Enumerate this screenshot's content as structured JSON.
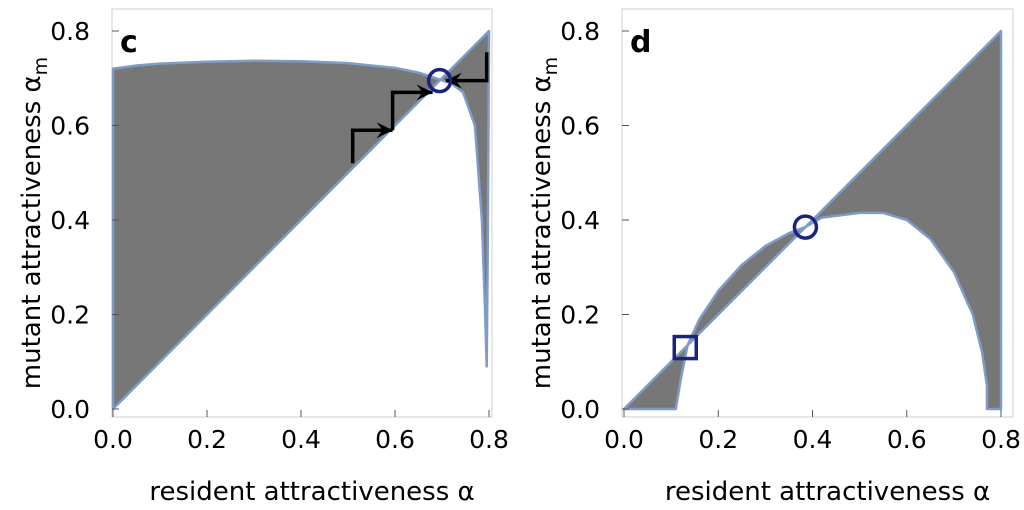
{
  "chart_data": [
    {
      "type": "area",
      "panel_label": "c",
      "xlabel": "resident attractiveness α",
      "ylabel": "mutant attractiveness α_m",
      "ylabel_text": "mutant attractiveness α",
      "ylabel_subscript": "m",
      "xlim": [
        0.0,
        0.8
      ],
      "ylim": [
        0.0,
        0.8
      ],
      "x_ticks": [
        "0.0",
        "0.2",
        "0.4",
        "0.6",
        "0.8"
      ],
      "y_ticks": [
        "0.0",
        "0.2",
        "0.4",
        "0.6",
        "0.8"
      ],
      "grid": false,
      "fill_color": "#777777",
      "boundary_color": "#7f9cc9",
      "marker_color": "#1a237e",
      "region_boundary": [
        [
          0.0,
          0.0
        ],
        [
          0.0,
          0.72
        ],
        [
          0.05,
          0.727
        ],
        [
          0.1,
          0.731
        ],
        [
          0.2,
          0.735
        ],
        [
          0.3,
          0.737
        ],
        [
          0.4,
          0.736
        ],
        [
          0.5,
          0.732
        ],
        [
          0.6,
          0.722
        ],
        [
          0.65,
          0.712
        ],
        [
          0.69,
          0.699
        ],
        [
          0.72,
          0.689
        ],
        [
          0.745,
          0.67
        ],
        [
          0.77,
          0.6
        ],
        [
          0.785,
          0.4
        ],
        [
          0.792,
          0.2
        ],
        [
          0.795,
          0.09
        ],
        [
          0.797,
          0.3
        ],
        [
          0.799,
          0.6
        ],
        [
          0.8,
          0.8
        ],
        [
          0.0,
          0.0
        ]
      ],
      "markers": [
        {
          "shape": "circle",
          "x": 0.695,
          "y": 0.695
        }
      ],
      "arrow_paths": [
        {
          "points": [
            [
              0.51,
              0.52
            ],
            [
              0.51,
              0.59
            ],
            [
              0.595,
              0.59
            ]
          ],
          "direction": "right"
        },
        {
          "points": [
            [
              0.595,
              0.59
            ],
            [
              0.595,
              0.67
            ],
            [
              0.68,
              0.67
            ]
          ],
          "direction": "right"
        },
        {
          "points": [
            [
              0.795,
              0.755
            ],
            [
              0.795,
              0.695
            ],
            [
              0.708,
              0.695
            ]
          ],
          "direction": "left"
        }
      ]
    },
    {
      "type": "area",
      "panel_label": "d",
      "xlabel": "resident attractiveness α",
      "ylabel": "mutant attractiveness α_m",
      "ylabel_text": "mutant attractiveness α",
      "ylabel_subscript": "m",
      "xlim": [
        0.0,
        0.8
      ],
      "ylim": [
        0.0,
        0.8
      ],
      "x_ticks": [
        "0.0",
        "0.2",
        "0.4",
        "0.6",
        "0.8"
      ],
      "y_ticks": [
        "0.0",
        "0.2",
        "0.4",
        "0.6",
        "0.8"
      ],
      "grid": false,
      "fill_color": "#777777",
      "boundary_color": "#7f9cc9",
      "marker_color": "#1a237e",
      "region_boundary": [
        [
          0.0,
          0.0
        ],
        [
          0.11,
          0.0
        ],
        [
          0.12,
          0.06
        ],
        [
          0.135,
          0.135
        ],
        [
          0.16,
          0.19
        ],
        [
          0.2,
          0.25
        ],
        [
          0.25,
          0.305
        ],
        [
          0.3,
          0.345
        ],
        [
          0.35,
          0.372
        ],
        [
          0.385,
          0.385
        ],
        [
          0.42,
          0.405
        ],
        [
          0.5,
          0.415
        ],
        [
          0.55,
          0.415
        ],
        [
          0.6,
          0.4
        ],
        [
          0.65,
          0.36
        ],
        [
          0.7,
          0.29
        ],
        [
          0.74,
          0.2
        ],
        [
          0.76,
          0.12
        ],
        [
          0.77,
          0.05
        ],
        [
          0.77,
          0.0
        ],
        [
          0.8,
          0.0
        ],
        [
          0.8,
          0.8
        ],
        [
          0.0,
          0.0
        ]
      ],
      "markers": [
        {
          "shape": "circle",
          "x": 0.385,
          "y": 0.385
        },
        {
          "shape": "square",
          "x": 0.13,
          "y": 0.13
        }
      ],
      "arrow_paths": []
    }
  ]
}
